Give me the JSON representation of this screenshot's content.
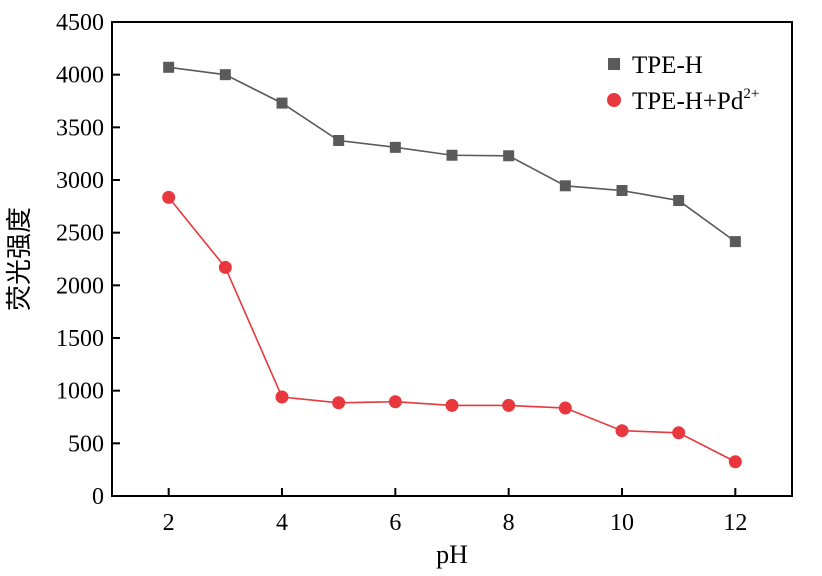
{
  "chart_data": {
    "type": "line",
    "xlabel": "pH",
    "ylabel": "荧光强度",
    "xlim": [
      1,
      13
    ],
    "ylim": [
      0,
      4500
    ],
    "xticks": [
      2,
      4,
      6,
      8,
      10,
      12
    ],
    "xtick_labels": [
      "2",
      "4",
      "6",
      "8",
      "10",
      "12"
    ],
    "yticks": [
      0,
      500,
      1000,
      1500,
      2000,
      2500,
      3000,
      3500,
      4000,
      4500
    ],
    "ytick_labels": [
      "0",
      "500",
      "1000",
      "1500",
      "2000",
      "2500",
      "3000",
      "3500",
      "4000",
      "4500"
    ],
    "grid": false,
    "legend_position": "top-right",
    "x": [
      2,
      3,
      4,
      5,
      6,
      7,
      8,
      9,
      10,
      11,
      12
    ],
    "series": [
      {
        "name": "TPE-H",
        "label_main": "TPE-H",
        "label_sup": "",
        "marker": "square",
        "color": "#5a5a5a",
        "values": [
          4070,
          4000,
          3730,
          3375,
          3310,
          3235,
          3230,
          2945,
          2900,
          2805,
          2415
        ]
      },
      {
        "name": "TPE-H+Pd2+",
        "label_main": "TPE-H+Pd",
        "label_sup": "2+",
        "marker": "circle",
        "color": "#e8383d",
        "values": [
          2835,
          2170,
          940,
          885,
          895,
          860,
          860,
          835,
          620,
          600,
          325
        ]
      }
    ]
  }
}
